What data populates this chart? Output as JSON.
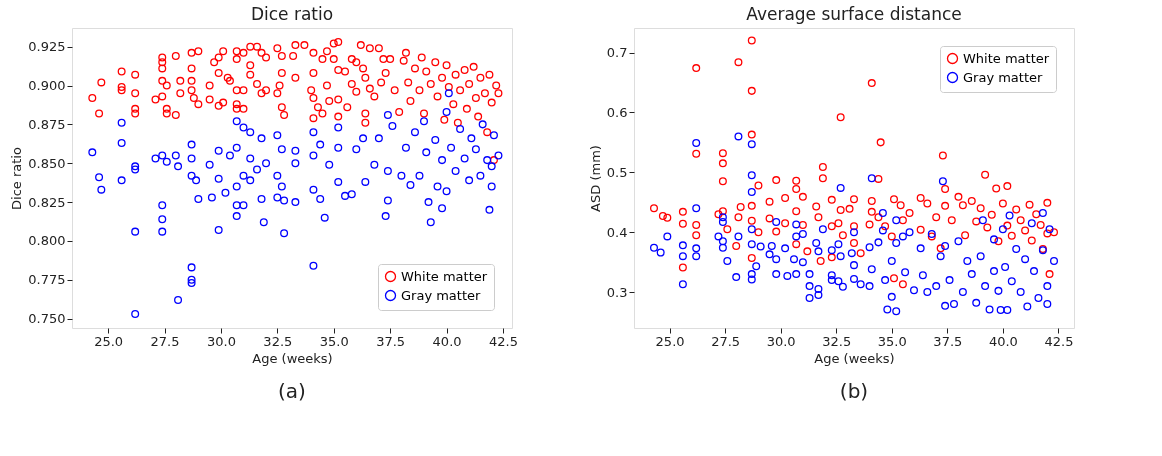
{
  "chart_data": [
    {
      "type": "scatter",
      "title": "Dice ratio",
      "xlabel": "Age (weeks)",
      "ylabel": "Dice ratio",
      "marker": "circle",
      "grid": false,
      "legend": "bottom right",
      "xlim": [
        23.4,
        42.9
      ],
      "ylim": [
        0.744,
        0.937
      ],
      "xticks": [
        {
          "value": 25,
          "label": "25.0"
        },
        {
          "value": 27.5,
          "label": "27.5"
        },
        {
          "value": 30,
          "label": "30.0"
        },
        {
          "value": 32.5,
          "label": "32.5"
        },
        {
          "value": 35,
          "label": "35.0"
        },
        {
          "value": 37.5,
          "label": "37.5"
        },
        {
          "value": 40,
          "label": "40.0"
        },
        {
          "value": 42.5,
          "label": "42.5"
        }
      ],
      "yticks": [
        {
          "value": 0.75,
          "label": "0.750"
        },
        {
          "value": 0.775,
          "label": "0.775"
        },
        {
          "value": 0.8,
          "label": "0.800"
        },
        {
          "value": 0.825,
          "label": "0.825"
        },
        {
          "value": 0.85,
          "label": "0.850"
        },
        {
          "value": 0.875,
          "label": "0.875"
        },
        {
          "value": 0.9,
          "label": "0.900"
        },
        {
          "value": 0.925,
          "label": "0.925"
        }
      ],
      "annotations": [
        "(a)"
      ],
      "series": [
        {
          "name": "White matter",
          "color": "#ff0000",
          "x": [
            24.3,
            24.6,
            24.7,
            25.6,
            25.6,
            25.6,
            26.2,
            26.2,
            26.2,
            26.2,
            27.1,
            27.4,
            27.4,
            27.4,
            27.4,
            27.4,
            27.6,
            27.6,
            27.6,
            28.0,
            28.0,
            28.2,
            28.2,
            28.7,
            28.7,
            28.7,
            28.7,
            28.8,
            29.0,
            29.0,
            29.5,
            29.5,
            29.7,
            29.9,
            29.9,
            29.9,
            30.1,
            30.1,
            30.3,
            30.4,
            30.7,
            30.7,
            30.7,
            30.7,
            30.7,
            31.0,
            31.0,
            31.0,
            31.3,
            31.3,
            31.3,
            31.6,
            31.6,
            31.8,
            31.8,
            32.0,
            32.0,
            32.5,
            32.5,
            32.6,
            32.7,
            32.7,
            32.7,
            32.8,
            33.2,
            33.3,
            33.3,
            33.7,
            34.0,
            34.1,
            34.1,
            34.1,
            34.1,
            34.3,
            34.5,
            34.5,
            34.7,
            34.7,
            34.8,
            35.0,
            35.0,
            35.2,
            35.2,
            35.2,
            35.2,
            35.5,
            35.6,
            35.8,
            35.8,
            36.0,
            36.0,
            36.2,
            36.3,
            36.4,
            36.4,
            36.4,
            36.6,
            36.6,
            36.8,
            37.0,
            37.1,
            37.2,
            37.3,
            37.5,
            37.7,
            37.9,
            38.1,
            38.2,
            38.3,
            38.4,
            38.6,
            38.8,
            38.9,
            39.0,
            39.1,
            39.3,
            39.5,
            39.6,
            39.8,
            39.9,
            40.0,
            40.1,
            40.3,
            40.4,
            40.5,
            40.6,
            40.8,
            40.9,
            41.0,
            41.2,
            41.3,
            41.4,
            41.5,
            41.7,
            41.8,
            41.9,
            42.0,
            42.1,
            42.2,
            42.3
          ],
          "values": [
            0.892,
            0.882,
            0.902,
            0.909,
            0.899,
            0.897,
            0.907,
            0.895,
            0.885,
            0.882,
            0.891,
            0.918,
            0.915,
            0.911,
            0.903,
            0.893,
            0.9,
            0.885,
            0.882,
            0.919,
            0.881,
            0.903,
            0.895,
            0.921,
            0.911,
            0.903,
            0.897,
            0.892,
            0.922,
            0.888,
            0.9,
            0.891,
            0.915,
            0.918,
            0.908,
            0.887,
            0.922,
            0.889,
            0.905,
            0.903,
            0.922,
            0.917,
            0.897,
            0.888,
            0.885,
            0.921,
            0.897,
            0.885,
            0.925,
            0.913,
            0.907,
            0.925,
            0.901,
            0.921,
            0.895,
            0.918,
            0.897,
            0.924,
            0.895,
            0.9,
            0.919,
            0.908,
            0.886,
            0.881,
            0.919,
            0.926,
            0.905,
            0.926,
            0.897,
            0.921,
            0.908,
            0.892,
            0.879,
            0.886,
            0.917,
            0.882,
            0.922,
            0.9,
            0.89,
            0.927,
            0.917,
            0.928,
            0.91,
            0.891,
            0.88,
            0.909,
            0.886,
            0.917,
            0.901,
            0.915,
            0.896,
            0.926,
            0.911,
            0.905,
            0.882,
            0.876,
            0.924,
            0.898,
            0.893,
            0.924,
            0.902,
            0.917,
            0.908,
            0.917,
            0.897,
            0.883,
            0.916,
            0.921,
            0.902,
            0.89,
            0.911,
            0.897,
            0.918,
            0.882,
            0.909,
            0.901,
            0.915,
            0.893,
            0.905,
            0.878,
            0.913,
            0.899,
            0.888,
            0.907,
            0.876,
            0.897,
            0.91,
            0.885,
            0.901,
            0.912,
            0.892,
            0.88,
            0.905,
            0.895,
            0.87,
            0.907,
            0.889,
            0.852,
            0.9,
            0.895
          ]
        },
        {
          "name": "Gray matter",
          "color": "#0000ff",
          "x": [
            24.3,
            24.6,
            24.7,
            25.6,
            25.6,
            25.6,
            26.2,
            26.2,
            26.2,
            26.2,
            27.1,
            27.4,
            27.4,
            27.4,
            27.4,
            27.6,
            28.0,
            28.1,
            28.1,
            28.7,
            28.7,
            28.7,
            28.7,
            28.7,
            28.7,
            28.9,
            29.0,
            29.5,
            29.6,
            29.9,
            29.9,
            29.9,
            30.2,
            30.4,
            30.7,
            30.7,
            30.7,
            30.7,
            30.7,
            31.0,
            31.0,
            31.0,
            31.3,
            31.3,
            31.3,
            31.6,
            31.8,
            31.8,
            31.9,
            32.0,
            32.5,
            32.5,
            32.5,
            32.7,
            32.7,
            32.8,
            32.8,
            33.3,
            33.3,
            33.3,
            34.1,
            34.1,
            34.1,
            34.1,
            34.4,
            34.4,
            34.6,
            34.8,
            35.2,
            35.2,
            35.2,
            35.5,
            35.8,
            36.0,
            36.3,
            36.4,
            36.8,
            37.0,
            37.3,
            37.4,
            37.4,
            37.4,
            37.6,
            38.0,
            38.2,
            38.4,
            38.6,
            38.8,
            39.0,
            39.1,
            39.2,
            39.3,
            39.5,
            39.6,
            39.8,
            39.8,
            40.0,
            40.0,
            40.1,
            40.2,
            40.4,
            40.6,
            40.8,
            41.0,
            41.1,
            41.3,
            41.5,
            41.6,
            41.8,
            41.9,
            42.0,
            42.0,
            42.1,
            42.3
          ],
          "values": [
            0.857,
            0.841,
            0.833,
            0.876,
            0.863,
            0.839,
            0.848,
            0.846,
            0.806,
            0.753,
            0.853,
            0.855,
            0.823,
            0.814,
            0.806,
            0.851,
            0.855,
            0.848,
            0.762,
            0.862,
            0.853,
            0.842,
            0.783,
            0.775,
            0.773,
            0.839,
            0.827,
            0.849,
            0.828,
            0.858,
            0.84,
            0.807,
            0.831,
            0.855,
            0.877,
            0.86,
            0.835,
            0.823,
            0.816,
            0.873,
            0.842,
            0.823,
            0.87,
            0.853,
            0.839,
            0.846,
            0.866,
            0.827,
            0.812,
            0.85,
            0.868,
            0.842,
            0.828,
            0.859,
            0.835,
            0.826,
            0.805,
            0.858,
            0.85,
            0.825,
            0.87,
            0.855,
            0.833,
            0.784,
            0.862,
            0.827,
            0.815,
            0.849,
            0.873,
            0.86,
            0.838,
            0.829,
            0.83,
            0.859,
            0.866,
            0.838,
            0.849,
            0.866,
            0.816,
            0.881,
            0.845,
            0.826,
            0.874,
            0.842,
            0.86,
            0.836,
            0.87,
            0.842,
            0.877,
            0.857,
            0.825,
            0.812,
            0.865,
            0.835,
            0.852,
            0.821,
            0.883,
            0.832,
            0.895,
            0.86,
            0.845,
            0.872,
            0.853,
            0.839,
            0.866,
            0.859,
            0.842,
            0.875,
            0.852,
            0.82,
            0.848,
            0.835,
            0.868,
            0.855
          ]
        }
      ]
    },
    {
      "type": "scatter",
      "title": "Average surface distance",
      "xlabel": "Age (weeks)",
      "ylabel": "ASD (mm)",
      "marker": "circle",
      "grid": false,
      "legend": "top right",
      "xlim": [
        23.4,
        43.2
      ],
      "ylim": [
        0.24,
        0.741
      ],
      "xticks": [
        {
          "value": 25,
          "label": "25.0"
        },
        {
          "value": 27.5,
          "label": "27.5"
        },
        {
          "value": 30,
          "label": "30.0"
        },
        {
          "value": 32.5,
          "label": "32.5"
        },
        {
          "value": 35,
          "label": "35.0"
        },
        {
          "value": 37.5,
          "label": "37.5"
        },
        {
          "value": 40,
          "label": "40.0"
        },
        {
          "value": 42.5,
          "label": "42.5"
        }
      ],
      "yticks": [
        0.3,
        0.4,
        0.5,
        0.6,
        0.7
      ],
      "annotations": [
        "(b)"
      ],
      "series": [
        {
          "name": "White matter",
          "color": "#ff0000",
          "x": [
            24.3,
            24.7,
            24.9,
            25.6,
            25.6,
            25.6,
            26.2,
            26.2,
            26.2,
            26.2,
            27.2,
            27.4,
            27.4,
            27.4,
            27.4,
            27.6,
            28.0,
            28.1,
            28.1,
            28.2,
            28.7,
            28.7,
            28.7,
            28.7,
            28.7,
            28.7,
            29.0,
            29.0,
            29.5,
            29.5,
            29.8,
            29.8,
            30.2,
            30.2,
            30.7,
            30.7,
            30.7,
            30.7,
            31.0,
            31.0,
            31.2,
            31.6,
            31.7,
            31.8,
            31.9,
            31.9,
            32.3,
            32.3,
            32.3,
            32.6,
            32.7,
            32.7,
            32.8,
            33.1,
            33.3,
            33.3,
            33.3,
            33.6,
            34.0,
            34.1,
            34.1,
            34.1,
            34.4,
            34.5,
            34.4,
            34.7,
            35.0,
            35.1,
            35.1,
            35.4,
            35.5,
            35.5,
            35.8,
            36.3,
            36.3,
            36.6,
            36.8,
            37.0,
            37.2,
            37.3,
            37.4,
            37.4,
            37.7,
            38.0,
            38.2,
            38.3,
            38.6,
            38.8,
            39.0,
            39.2,
            39.3,
            39.5,
            39.7,
            39.8,
            40.0,
            40.2,
            40.2,
            40.4,
            40.6,
            40.8,
            41.0,
            41.2,
            41.3,
            41.5,
            41.7,
            41.8,
            42.0,
            42.0,
            42.1,
            42.3
          ],
          "values": [
            0.44,
            0.427,
            0.424,
            0.434,
            0.414,
            0.341,
            0.674,
            0.531,
            0.412,
            0.395,
            0.43,
            0.532,
            0.515,
            0.485,
            0.435,
            0.405,
            0.377,
            0.684,
            0.425,
            0.442,
            0.72,
            0.636,
            0.563,
            0.444,
            0.419,
            0.357,
            0.478,
            0.4,
            0.451,
            0.423,
            0.487,
            0.401,
            0.457,
            0.415,
            0.486,
            0.472,
            0.435,
            0.38,
            0.459,
            0.412,
            0.368,
            0.443,
            0.425,
            0.352,
            0.509,
            0.49,
            0.454,
            0.41,
            0.358,
            0.415,
            0.592,
            0.437,
            0.395,
            0.439,
            0.455,
            0.41,
            0.382,
            0.365,
            0.413,
            0.649,
            0.452,
            0.434,
            0.425,
            0.55,
            0.489,
            0.41,
            0.393,
            0.455,
            0.323,
            0.445,
            0.42,
            0.313,
            0.432,
            0.457,
            0.404,
            0.448,
            0.393,
            0.425,
            0.373,
            0.528,
            0.472,
            0.444,
            0.42,
            0.459,
            0.445,
            0.395,
            0.452,
            0.418,
            0.44,
            0.496,
            0.408,
            0.429,
            0.473,
            0.385,
            0.448,
            0.477,
            0.411,
            0.394,
            0.438,
            0.42,
            0.403,
            0.446,
            0.386,
            0.43,
            0.412,
            0.372,
            0.449,
            0.398,
            0.33,
            0.4
          ]
        },
        {
          "name": "Gray matter",
          "color": "#0000ff",
          "x": [
            24.3,
            24.6,
            24.9,
            25.6,
            25.6,
            25.6,
            26.2,
            26.2,
            26.2,
            26.2,
            27.2,
            27.4,
            27.4,
            27.4,
            27.4,
            27.6,
            28.0,
            28.1,
            28.1,
            28.7,
            28.7,
            28.7,
            28.7,
            28.7,
            28.7,
            28.7,
            28.9,
            29.1,
            29.5,
            29.6,
            29.8,
            29.8,
            29.8,
            30.2,
            30.3,
            30.6,
            30.7,
            30.7,
            30.7,
            31.0,
            31.0,
            31.3,
            31.3,
            31.3,
            31.6,
            31.7,
            31.7,
            31.7,
            31.9,
            32.3,
            32.3,
            32.3,
            32.6,
            32.6,
            32.7,
            32.7,
            32.8,
            33.2,
            33.3,
            33.3,
            33.3,
            33.6,
            34.0,
            34.0,
            34.1,
            34.1,
            34.4,
            34.6,
            34.6,
            34.7,
            34.8,
            35.0,
            35.0,
            35.2,
            35.2,
            35.2,
            35.5,
            35.6,
            35.8,
            36.0,
            36.3,
            36.4,
            36.6,
            36.8,
            37.0,
            37.2,
            37.3,
            37.4,
            37.4,
            37.6,
            37.8,
            38.0,
            38.2,
            38.4,
            38.6,
            38.8,
            39.0,
            39.1,
            39.2,
            39.4,
            39.6,
            39.6,
            39.8,
            39.9,
            40.0,
            40.1,
            40.2,
            40.3,
            40.4,
            40.6,
            40.8,
            41.0,
            41.1,
            41.3,
            41.4,
            41.6,
            41.8,
            41.8,
            42.0,
            42.0,
            42.1,
            42.3
          ],
          "values": [
            0.374,
            0.366,
            0.393,
            0.378,
            0.36,
            0.313,
            0.549,
            0.44,
            0.373,
            0.36,
            0.393,
            0.425,
            0.417,
            0.385,
            0.374,
            0.352,
            0.325,
            0.56,
            0.393,
            0.547,
            0.495,
            0.467,
            0.405,
            0.38,
            0.33,
            0.321,
            0.343,
            0.376,
            0.363,
            0.377,
            0.417,
            0.355,
            0.33,
            0.373,
            0.327,
            0.355,
            0.413,
            0.393,
            0.33,
            0.397,
            0.35,
            0.33,
            0.31,
            0.29,
            0.382,
            0.368,
            0.305,
            0.295,
            0.405,
            0.37,
            0.328,
            0.32,
            0.38,
            0.318,
            0.474,
            0.36,
            0.309,
            0.365,
            0.4,
            0.345,
            0.322,
            0.313,
            0.375,
            0.31,
            0.49,
            0.338,
            0.383,
            0.432,
            0.403,
            0.32,
            0.271,
            0.352,
            0.292,
            0.42,
            0.382,
            0.268,
            0.393,
            0.333,
            0.4,
            0.303,
            0.373,
            0.328,
            0.3,
            0.397,
            0.31,
            0.36,
            0.485,
            0.377,
            0.277,
            0.32,
            0.28,
            0.385,
            0.3,
            0.352,
            0.33,
            0.282,
            0.36,
            0.42,
            0.31,
            0.271,
            0.388,
            0.335,
            0.302,
            0.27,
            0.405,
            0.342,
            0.27,
            0.428,
            0.318,
            0.372,
            0.3,
            0.355,
            0.276,
            0.415,
            0.335,
            0.29,
            0.432,
            0.37,
            0.31,
            0.28,
            0.405,
            0.352
          ]
        }
      ]
    }
  ]
}
